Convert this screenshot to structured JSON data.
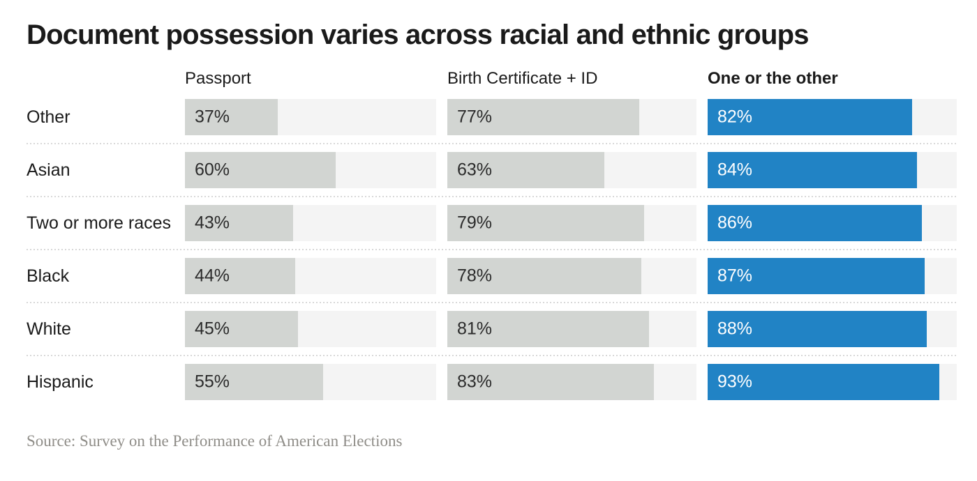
{
  "title": "Document possession varies across racial and ethnic groups",
  "source": "Source: Survey on the Performance of American Elections",
  "colors": {
    "bar_gray": "#d2d5d2",
    "bar_blue": "#2183c5",
    "track": "#f4f4f4",
    "text": "#1a1a1a",
    "value_on_gray": "#2b2b2b",
    "value_on_blue": "#ffffff",
    "separator": "#d8d8d8",
    "source_text": "#8f8d88"
  },
  "chart_data": {
    "type": "bar",
    "orientation": "horizontal",
    "title": "Document possession varies across racial and ethnic groups",
    "categories": [
      "Other",
      "Asian",
      "Two or more races",
      "Black",
      "White",
      "Hispanic"
    ],
    "series": [
      {
        "name": "Passport",
        "emphasis": false,
        "values": [
          37,
          60,
          43,
          44,
          45,
          55
        ]
      },
      {
        "name": "Birth Certificate + ID",
        "emphasis": false,
        "values": [
          77,
          63,
          79,
          78,
          81,
          83
        ]
      },
      {
        "name": "One or the other",
        "emphasis": true,
        "values": [
          82,
          84,
          86,
          87,
          88,
          93
        ]
      }
    ],
    "value_suffix": "%",
    "xlim": [
      0,
      100
    ],
    "grid": false,
    "legend_position": "column-headers",
    "value_labels": "inside-left"
  }
}
